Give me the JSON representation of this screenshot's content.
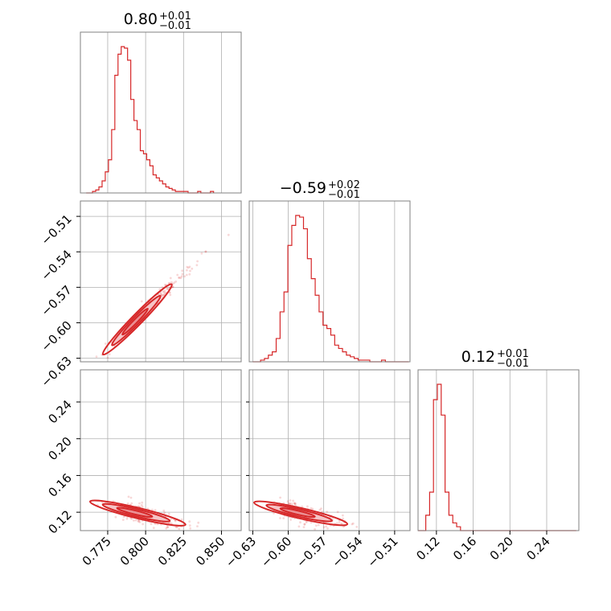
{
  "chart_data": {
    "type": "corner",
    "parameters": [
      {
        "id": "p0",
        "title_value": "0.80",
        "title_plus": "+0.01",
        "title_minus": "−0.01",
        "range": [
          0.757,
          0.863
        ],
        "ticks": [
          0.775,
          0.8,
          0.825,
          0.85
        ],
        "tick_labels": [
          "0.775",
          "0.800",
          "0.825",
          "0.850"
        ],
        "hist_edges_start": 0.7608,
        "hist_bin_width": 0.0021,
        "hist_counts": [
          0,
          0,
          1,
          2,
          4,
          8,
          14,
          22,
          42,
          78,
          92,
          97,
          96,
          88,
          62,
          48,
          42,
          28,
          26,
          22,
          18,
          12,
          10,
          8,
          6,
          4,
          3,
          2,
          1,
          1,
          1,
          1,
          0,
          0,
          0,
          1,
          0,
          0,
          0,
          1
        ]
      },
      {
        "id": "p1",
        "title_value": "−0.59",
        "title_plus": "+0.02",
        "title_minus": "−0.01",
        "range": [
          -0.633,
          -0.497
        ],
        "ticks": [
          -0.63,
          -0.6,
          -0.57,
          -0.54,
          -0.51
        ],
        "tick_labels": [
          "−0.63",
          "−0.60",
          "−0.57",
          "−0.54",
          "−0.51"
        ],
        "hist_edges_start": -0.63,
        "hist_bin_width": 0.0033,
        "hist_counts": [
          0,
          0,
          1,
          2,
          4,
          6,
          14,
          30,
          42,
          70,
          82,
          88,
          87,
          80,
          62,
          50,
          40,
          30,
          22,
          20,
          16,
          10,
          8,
          6,
          4,
          3,
          2,
          1,
          1,
          1,
          0,
          0,
          0,
          1,
          0,
          0,
          0,
          0,
          0,
          0
        ]
      },
      {
        "id": "p2",
        "title_value": "0.12",
        "title_plus": "+0.01",
        "title_minus": "−0.01",
        "range": [
          0.1,
          0.275
        ],
        "ticks": [
          0.12,
          0.16,
          0.2,
          0.24
        ],
        "tick_labels": [
          "0.12",
          "0.16",
          "0.20",
          "0.24"
        ],
        "hist_edges_start": 0.1,
        "hist_bin_width": 0.0042,
        "hist_counts": [
          0,
          0,
          4,
          10,
          34,
          38,
          30,
          10,
          4,
          2,
          1,
          0,
          0,
          0,
          0,
          0,
          0,
          0,
          0,
          0,
          0,
          0,
          0,
          0,
          0,
          0,
          0,
          0,
          0,
          0,
          0,
          0,
          0,
          0,
          0,
          0,
          0,
          0,
          0,
          0,
          0
        ]
      }
    ],
    "pairs": [
      {
        "x": "p0",
        "y": "p1",
        "slope": 1.31,
        "intercept": -1.638,
        "x_center": 0.792,
        "x_spread": 0.012,
        "y_scatter": 0.003
      },
      {
        "x": "p0",
        "y": "p2",
        "slope": -0.4,
        "intercept": 0.437,
        "x_center": 0.792,
        "x_spread": 0.012,
        "y_scatter": 0.005
      },
      {
        "x": "p1",
        "y": "p2",
        "slope": -0.3,
        "intercept": -0.058,
        "x_center": -0.593,
        "x_spread": 0.015,
        "y_scatter": 0.005
      }
    ],
    "grid": true,
    "color": "#d62728"
  }
}
